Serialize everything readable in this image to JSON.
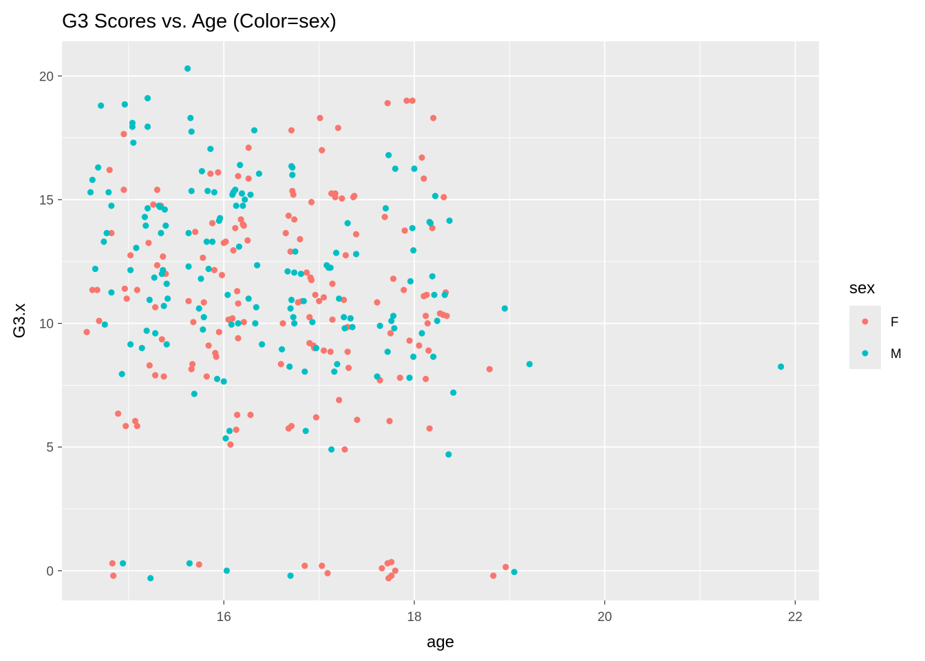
{
  "chart_data": {
    "type": "scatter",
    "title": "G3 Scores vs. Age (Color=sex)",
    "xlabel": "age",
    "ylabel": "G3.x",
    "xlim": [
      14.3,
      22.25
    ],
    "ylim": [
      -1.2,
      21.4
    ],
    "x_ticks": [
      16,
      18,
      20,
      22
    ],
    "y_ticks": [
      0,
      5,
      10,
      15,
      20
    ],
    "grid": true,
    "legend": {
      "title": "sex",
      "placement": "right"
    },
    "colors": {
      "F": "#F8766D",
      "M": "#00BFC4",
      "panel": "#EBEBEB",
      "grid": "#FFFFFF"
    },
    "series": [
      {
        "name": "F",
        "color": "#F8766D",
        "points": [
          [
            14.56,
            9.65
          ],
          [
            14.62,
            11.35
          ],
          [
            14.67,
            11.35
          ],
          [
            14.69,
            10.1
          ],
          [
            14.8,
            16.2
          ],
          [
            14.82,
            13.65
          ],
          [
            14.83,
            0.3
          ],
          [
            14.84,
            -0.2
          ],
          [
            14.89,
            6.35
          ],
          [
            14.95,
            17.65
          ],
          [
            14.95,
            15.4
          ],
          [
            14.96,
            11.4
          ],
          [
            14.98,
            11.0
          ],
          [
            14.97,
            5.85
          ],
          [
            15.02,
            12.75
          ],
          [
            15.07,
            6.05
          ],
          [
            15.09,
            5.85
          ],
          [
            15.09,
            11.35
          ],
          [
            15.21,
            13.25
          ],
          [
            15.22,
            8.3
          ],
          [
            15.26,
            14.8
          ],
          [
            15.28,
            7.9
          ],
          [
            15.3,
            15.4
          ],
          [
            15.3,
            12.35
          ],
          [
            15.28,
            10.65
          ],
          [
            15.34,
            14.75
          ],
          [
            15.36,
            12.7
          ],
          [
            15.35,
            9.35
          ],
          [
            15.37,
            7.85
          ],
          [
            15.39,
            12.0
          ],
          [
            15.63,
            10.9
          ],
          [
            15.66,
            8.15
          ],
          [
            15.67,
            8.35
          ],
          [
            15.68,
            10.05
          ],
          [
            15.7,
            13.7
          ],
          [
            15.74,
            0.25
          ],
          [
            15.78,
            12.65
          ],
          [
            15.79,
            10.85
          ],
          [
            15.82,
            7.85
          ],
          [
            15.84,
            9.1
          ],
          [
            15.86,
            16.05
          ],
          [
            15.88,
            14.05
          ],
          [
            15.9,
            12.15
          ],
          [
            15.91,
            8.8
          ],
          [
            15.92,
            8.65
          ],
          [
            15.94,
            16.1
          ],
          [
            15.95,
            9.65
          ],
          [
            15.98,
            11.95
          ],
          [
            16.0,
            13.25
          ],
          [
            16.02,
            13.3
          ],
          [
            16.05,
            10.15
          ],
          [
            16.07,
            5.1
          ],
          [
            16.09,
            10.2
          ],
          [
            16.1,
            12.95
          ],
          [
            16.12,
            13.85
          ],
          [
            16.13,
            5.7
          ],
          [
            16.14,
            6.3
          ],
          [
            16.14,
            11.3
          ],
          [
            16.15,
            9.4
          ],
          [
            16.15,
            10.8
          ],
          [
            16.15,
            15.95
          ],
          [
            16.18,
            14.2
          ],
          [
            16.2,
            14.0
          ],
          [
            16.21,
            13.95
          ],
          [
            16.21,
            10.05
          ],
          [
            16.25,
            13.35
          ],
          [
            16.26,
            15.85
          ],
          [
            16.26,
            17.1
          ],
          [
            16.28,
            6.3
          ],
          [
            16.6,
            8.35
          ],
          [
            16.62,
            10.0
          ],
          [
            16.65,
            13.65
          ],
          [
            16.68,
            14.35
          ],
          [
            16.68,
            5.75
          ],
          [
            16.71,
            5.85
          ],
          [
            16.7,
            12.9
          ],
          [
            16.71,
            17.8
          ],
          [
            16.72,
            15.35
          ],
          [
            16.73,
            15.2
          ],
          [
            16.74,
            14.2
          ],
          [
            16.78,
            10.85
          ],
          [
            16.8,
            13.4
          ],
          [
            16.82,
            10.9
          ],
          [
            16.85,
            0.2
          ],
          [
            16.87,
            12.05
          ],
          [
            16.9,
            9.2
          ],
          [
            16.9,
            10.25
          ],
          [
            16.91,
            11.85
          ],
          [
            16.92,
            11.75
          ],
          [
            16.92,
            14.9
          ],
          [
            16.94,
            9.1
          ],
          [
            16.95,
            9.0
          ],
          [
            16.96,
            11.15
          ],
          [
            16.97,
            6.2
          ],
          [
            17.0,
            10.9
          ],
          [
            17.01,
            18.3
          ],
          [
            17.03,
            17.0
          ],
          [
            17.03,
            0.2
          ],
          [
            17.05,
            11.05
          ],
          [
            17.05,
            8.9
          ],
          [
            17.09,
            -0.1
          ],
          [
            17.12,
            8.85
          ],
          [
            17.13,
            15.25
          ],
          [
            17.14,
            11.6
          ],
          [
            17.14,
            10.15
          ],
          [
            17.17,
            15.25
          ],
          [
            17.17,
            15.1
          ],
          [
            17.2,
            17.9
          ],
          [
            17.21,
            6.9
          ],
          [
            17.24,
            15.05
          ],
          [
            17.26,
            10.95
          ],
          [
            17.27,
            4.9
          ],
          [
            17.28,
            12.75
          ],
          [
            17.3,
            9.85
          ],
          [
            17.3,
            8.85
          ],
          [
            17.31,
            8.2
          ],
          [
            17.33,
            10.2
          ],
          [
            17.36,
            15.1
          ],
          [
            17.37,
            15.15
          ],
          [
            17.39,
            13.6
          ],
          [
            17.4,
            6.1
          ],
          [
            17.61,
            10.85
          ],
          [
            17.64,
            7.7
          ],
          [
            17.66,
            0.1
          ],
          [
            17.69,
            14.3
          ],
          [
            17.72,
            0.3
          ],
          [
            17.73,
            -0.3
          ],
          [
            17.74,
            6.05
          ],
          [
            17.76,
            0.35
          ],
          [
            17.76,
            -0.2
          ],
          [
            17.75,
            9.6
          ],
          [
            17.78,
            11.8
          ],
          [
            17.8,
            0.0
          ],
          [
            17.85,
            7.8
          ],
          [
            17.89,
            11.35
          ],
          [
            17.9,
            13.75
          ],
          [
            17.92,
            19.0
          ],
          [
            17.95,
            9.3
          ],
          [
            18.05,
            9.1
          ],
          [
            18.08,
            16.7
          ],
          [
            18.1,
            15.85
          ],
          [
            18.1,
            11.1
          ],
          [
            18.12,
            7.75
          ],
          [
            18.12,
            10.3
          ],
          [
            18.13,
            11.15
          ],
          [
            18.14,
            10.0
          ],
          [
            18.15,
            8.9
          ],
          [
            18.16,
            5.75
          ],
          [
            18.19,
            13.85
          ],
          [
            18.2,
            18.3
          ],
          [
            18.27,
            10.4
          ],
          [
            18.3,
            10.35
          ],
          [
            18.31,
            15.1
          ],
          [
            18.33,
            11.25
          ],
          [
            18.34,
            10.3
          ],
          [
            18.79,
            8.15
          ],
          [
            18.83,
            -0.2
          ],
          [
            18.96,
            0.15
          ],
          [
            17.72,
            18.9
          ],
          [
            17.98,
            19.0
          ]
        ]
      },
      {
        "name": "M",
        "color": "#00BFC4",
        "points": [
          [
            14.6,
            15.3
          ],
          [
            14.62,
            15.8
          ],
          [
            14.65,
            12.2
          ],
          [
            14.68,
            16.3
          ],
          [
            14.71,
            18.8
          ],
          [
            14.74,
            13.3
          ],
          [
            14.75,
            9.95
          ],
          [
            14.77,
            13.65
          ],
          [
            14.79,
            15.3
          ],
          [
            14.82,
            14.75
          ],
          [
            14.82,
            11.25
          ],
          [
            14.93,
            7.95
          ],
          [
            14.94,
            0.3
          ],
          [
            14.96,
            18.85
          ],
          [
            15.02,
            9.15
          ],
          [
            15.02,
            12.15
          ],
          [
            15.04,
            18.1
          ],
          [
            15.04,
            17.95
          ],
          [
            15.05,
            17.3
          ],
          [
            15.08,
            13.05
          ],
          [
            15.14,
            9.0
          ],
          [
            15.17,
            14.3
          ],
          [
            15.18,
            13.95
          ],
          [
            15.19,
            9.7
          ],
          [
            15.2,
            14.65
          ],
          [
            15.2,
            17.95
          ],
          [
            15.2,
            19.1
          ],
          [
            15.22,
            10.95
          ],
          [
            15.23,
            -0.3
          ],
          [
            15.27,
            11.85
          ],
          [
            15.28,
            9.6
          ],
          [
            15.32,
            14.75
          ],
          [
            15.33,
            14.7
          ],
          [
            15.34,
            13.65
          ],
          [
            15.35,
            12.0
          ],
          [
            15.36,
            12.15
          ],
          [
            15.37,
            10.7
          ],
          [
            15.38,
            14.6
          ],
          [
            15.39,
            13.95
          ],
          [
            15.4,
            11.6
          ],
          [
            15.41,
            11.0
          ],
          [
            15.4,
            9.15
          ],
          [
            15.62,
            20.3
          ],
          [
            15.63,
            13.65
          ],
          [
            15.63,
            12.3
          ],
          [
            15.64,
            0.3
          ],
          [
            15.65,
            18.3
          ],
          [
            15.66,
            17.75
          ],
          [
            15.66,
            15.35
          ],
          [
            15.69,
            7.15
          ],
          [
            15.74,
            10.6
          ],
          [
            15.76,
            11.8
          ],
          [
            15.77,
            16.15
          ],
          [
            15.78,
            9.75
          ],
          [
            15.79,
            10.25
          ],
          [
            15.82,
            13.3
          ],
          [
            15.83,
            15.35
          ],
          [
            15.84,
            12.2
          ],
          [
            15.86,
            17.05
          ],
          [
            15.88,
            13.3
          ],
          [
            15.9,
            15.3
          ],
          [
            15.93,
            7.75
          ],
          [
            15.95,
            14.15
          ],
          [
            15.96,
            14.25
          ],
          [
            16.0,
            7.65
          ],
          [
            16.02,
            5.35
          ],
          [
            16.03,
            0.0
          ],
          [
            16.04,
            11.15
          ],
          [
            16.06,
            5.65
          ],
          [
            16.08,
            9.95
          ],
          [
            16.09,
            15.2
          ],
          [
            16.1,
            15.3
          ],
          [
            16.12,
            15.4
          ],
          [
            16.13,
            14.75
          ],
          [
            16.15,
            10.0
          ],
          [
            16.16,
            13.1
          ],
          [
            16.17,
            16.4
          ],
          [
            16.19,
            15.25
          ],
          [
            16.2,
            14.75
          ],
          [
            16.22,
            15.0
          ],
          [
            16.26,
            11.0
          ],
          [
            16.28,
            15.2
          ],
          [
            16.32,
            17.8
          ],
          [
            16.33,
            10.0
          ],
          [
            16.34,
            10.65
          ],
          [
            16.35,
            12.35
          ],
          [
            16.37,
            16.05
          ],
          [
            16.4,
            9.15
          ],
          [
            16.61,
            8.95
          ],
          [
            16.67,
            12.1
          ],
          [
            16.69,
            8.25
          ],
          [
            16.7,
            -0.2
          ],
          [
            16.7,
            10.6
          ],
          [
            16.71,
            10.95
          ],
          [
            16.71,
            16.35
          ],
          [
            16.72,
            16.3
          ],
          [
            16.72,
            16.0
          ],
          [
            16.73,
            10.25
          ],
          [
            16.74,
            10.0
          ],
          [
            16.74,
            12.05
          ],
          [
            16.75,
            12.9
          ],
          [
            16.81,
            12.0
          ],
          [
            16.84,
            10.9
          ],
          [
            16.85,
            8.05
          ],
          [
            16.86,
            5.65
          ],
          [
            16.93,
            10.05
          ],
          [
            16.97,
            9.0
          ],
          [
            17.08,
            12.35
          ],
          [
            17.1,
            12.25
          ],
          [
            17.12,
            12.25
          ],
          [
            17.13,
            4.9
          ],
          [
            17.16,
            8.05
          ],
          [
            17.18,
            12.85
          ],
          [
            17.19,
            8.35
          ],
          [
            17.21,
            11.0
          ],
          [
            17.26,
            10.25
          ],
          [
            17.27,
            9.8
          ],
          [
            17.3,
            14.05
          ],
          [
            17.33,
            10.2
          ],
          [
            17.35,
            9.85
          ],
          [
            17.39,
            12.8
          ],
          [
            17.61,
            7.85
          ],
          [
            17.64,
            9.9
          ],
          [
            17.7,
            14.65
          ],
          [
            17.72,
            8.85
          ],
          [
            17.73,
            16.8
          ],
          [
            17.76,
            10.1
          ],
          [
            17.78,
            10.3
          ],
          [
            17.79,
            9.8
          ],
          [
            17.8,
            16.25
          ],
          [
            17.95,
            7.8
          ],
          [
            17.96,
            11.7
          ],
          [
            17.98,
            13.85
          ],
          [
            17.99,
            8.65
          ],
          [
            17.99,
            12.95
          ],
          [
            18.0,
            16.25
          ],
          [
            18.08,
            9.6
          ],
          [
            18.16,
            14.1
          ],
          [
            18.17,
            14.05
          ],
          [
            18.19,
            11.9
          ],
          [
            18.2,
            8.65
          ],
          [
            18.21,
            11.15
          ],
          [
            18.22,
            15.15
          ],
          [
            18.24,
            10.1
          ],
          [
            18.32,
            11.15
          ],
          [
            18.36,
            4.7
          ],
          [
            18.37,
            14.15
          ],
          [
            18.41,
            7.2
          ],
          [
            18.95,
            10.6
          ],
          [
            19.05,
            -0.05
          ],
          [
            19.21,
            8.35
          ],
          [
            21.85,
            8.25
          ]
        ]
      }
    ]
  }
}
